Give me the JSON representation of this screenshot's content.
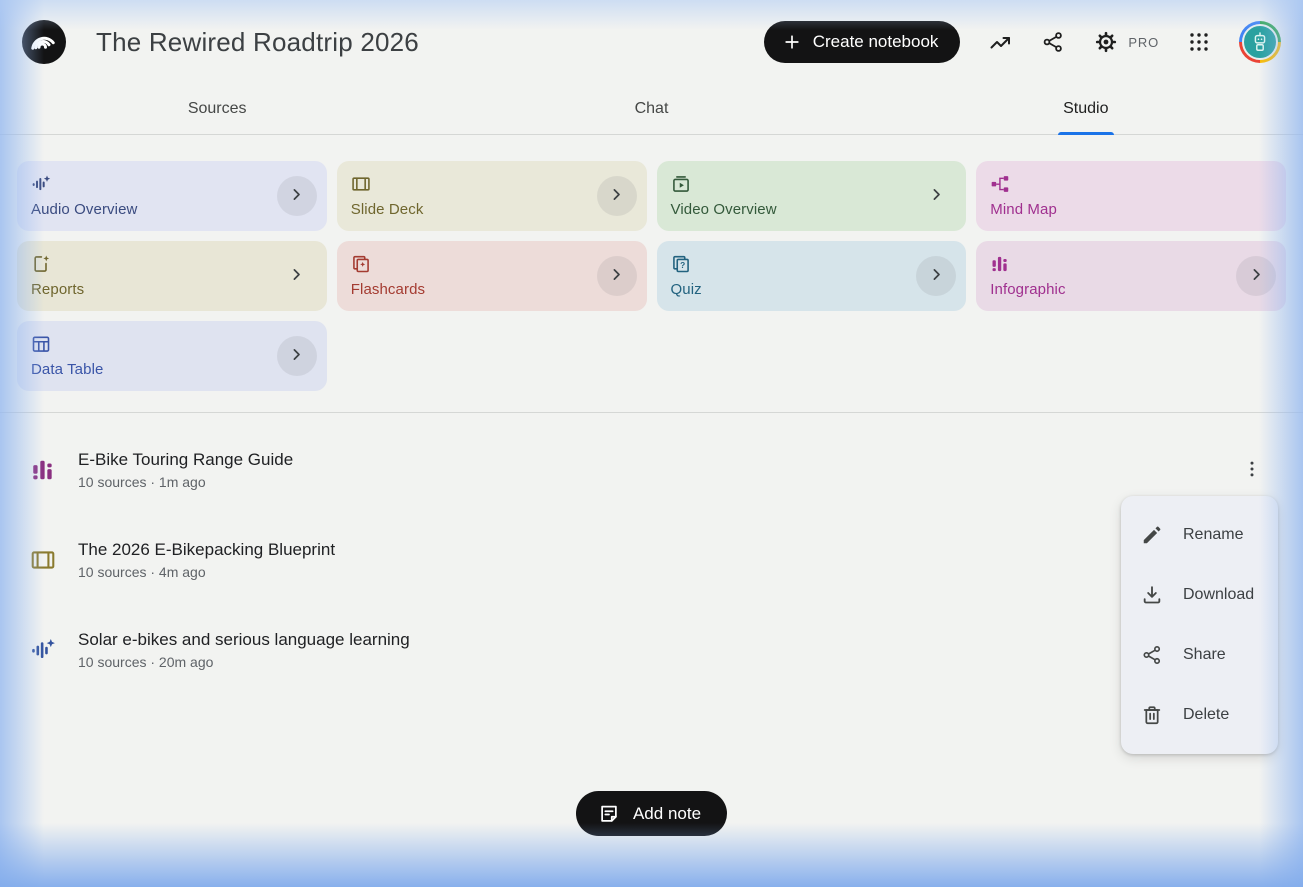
{
  "header": {
    "title": "The Rewired Roadtrip 2026",
    "create_button_label": "Create notebook",
    "pro_badge": "PRO",
    "icons": [
      "analytics-icon",
      "share-icon",
      "settings-icon",
      "apps-grid-icon"
    ]
  },
  "tabs": [
    {
      "label": "Sources",
      "active": false
    },
    {
      "label": "Chat",
      "active": false
    },
    {
      "label": "Studio",
      "active": true
    }
  ],
  "studio": {
    "cards": [
      {
        "label": "Audio Overview",
        "icon": "audio-overview-icon",
        "bg": "#e1e4f2",
        "fg": "#3a4b80",
        "chevron": "circle"
      },
      {
        "label": "Slide Deck",
        "icon": "slide-deck-icon",
        "bg": "#e9e8d9",
        "fg": "#6f662e",
        "chevron": "circle"
      },
      {
        "label": "Video Overview",
        "icon": "video-overview-icon",
        "bg": "#d9e8d6",
        "fg": "#33593a",
        "chevron": "plain"
      },
      {
        "label": "Mind Map",
        "icon": "mind-map-icon",
        "bg": "#ecdbe8",
        "fg": "#a0308f",
        "chevron": "none"
      },
      {
        "label": "Reports",
        "icon": "reports-icon",
        "bg": "#e8e6d6",
        "fg": "#6f662e",
        "chevron": "plain"
      },
      {
        "label": "Flashcards",
        "icon": "flashcards-icon",
        "bg": "#eddcd9",
        "fg": "#a43b31",
        "chevron": "circle"
      },
      {
        "label": "Quiz",
        "icon": "quiz-icon",
        "bg": "#d6e4ea",
        "fg": "#22627f",
        "chevron": "circle"
      },
      {
        "label": "Infographic",
        "icon": "infographic-icon",
        "bg": "#e9dae6",
        "fg": "#a0308f",
        "chevron": "circle"
      },
      {
        "label": "Data Table",
        "icon": "data-table-icon",
        "bg": "#dfe3f0",
        "fg": "#3a55a8",
        "chevron": "circle"
      }
    ],
    "artifacts": [
      {
        "title": "E-Bike Touring Range Guide",
        "meta": "10 sources · 1m ago",
        "icon": "infographic-icon",
        "icon_color": "#8a2f80",
        "menu_open": true
      },
      {
        "title": "The 2026 E-Bikepacking Blueprint",
        "meta": "10 sources · 4m ago",
        "icon": "slide-deck-icon",
        "icon_color": "#8a7a2e",
        "menu_open": false
      },
      {
        "title": "Solar e-bikes and serious language learning",
        "meta": "10 sources · 20m ago",
        "icon": "audio-overview-icon",
        "icon_color": "#33539f",
        "menu_open": false
      }
    ],
    "add_note_label": "Add note"
  },
  "context_menu": {
    "items": [
      {
        "label": "Rename",
        "icon": "pencil-icon"
      },
      {
        "label": "Download",
        "icon": "download-icon"
      },
      {
        "label": "Share",
        "icon": "share-icon"
      },
      {
        "label": "Delete",
        "icon": "trash-icon"
      }
    ]
  },
  "colors": {
    "accent": "#1a73e8",
    "edge_glow": "#84aeec",
    "pill_button": "#131314",
    "divider": "#d5d7d5"
  }
}
